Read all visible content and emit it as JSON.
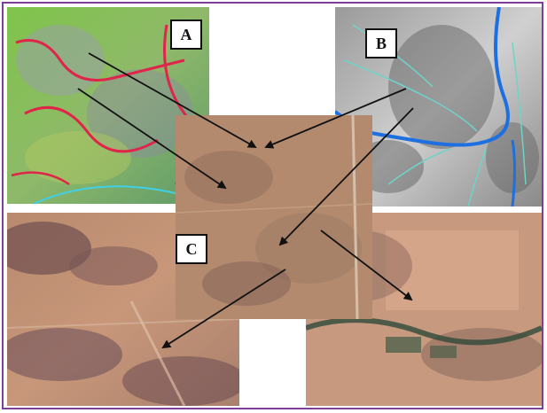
{
  "labels": {
    "a": "A",
    "b": "B",
    "c": "C"
  },
  "colors": {
    "frame_border": "#7d3f98",
    "stream_main": "#1e6fe0",
    "stream_minor": "#6fd3c8",
    "boundary_red": "#e0244a",
    "arrow": "#111111"
  }
}
